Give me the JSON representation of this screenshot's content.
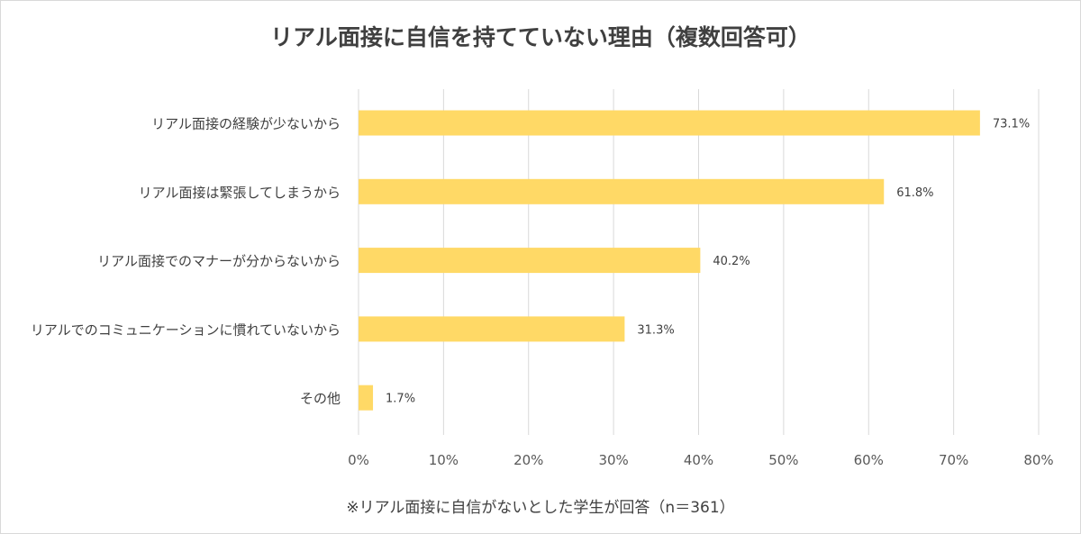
{
  "chart_data": {
    "type": "bar",
    "orientation": "horizontal",
    "title": "リアル面接に自信を持てていない理由（複数回答可）",
    "categories": [
      "リアル面接の経験が少ないから",
      "リアル面接は緊張してしまうから",
      "リアル面接でのマナーが分からないから",
      "リアルでのコミュニケーションに慣れていないから",
      "その他"
    ],
    "values": [
      73.1,
      61.8,
      40.2,
      31.3,
      1.7
    ],
    "data_labels": [
      "73.1%",
      "61.8%",
      "40.2%",
      "31.3%",
      "1.7%"
    ],
    "xlim": [
      0,
      80
    ],
    "x_ticks": [
      0,
      10,
      20,
      30,
      40,
      50,
      60,
      70,
      80
    ],
    "x_tick_labels": [
      "0%",
      "10%",
      "20%",
      "30%",
      "40%",
      "50%",
      "60%",
      "70%",
      "80%"
    ],
    "grid": true,
    "legend": "none",
    "bar_color": "#FFD966",
    "note": "※リアル面接に自信がないとした学生が回答（n＝361）"
  }
}
